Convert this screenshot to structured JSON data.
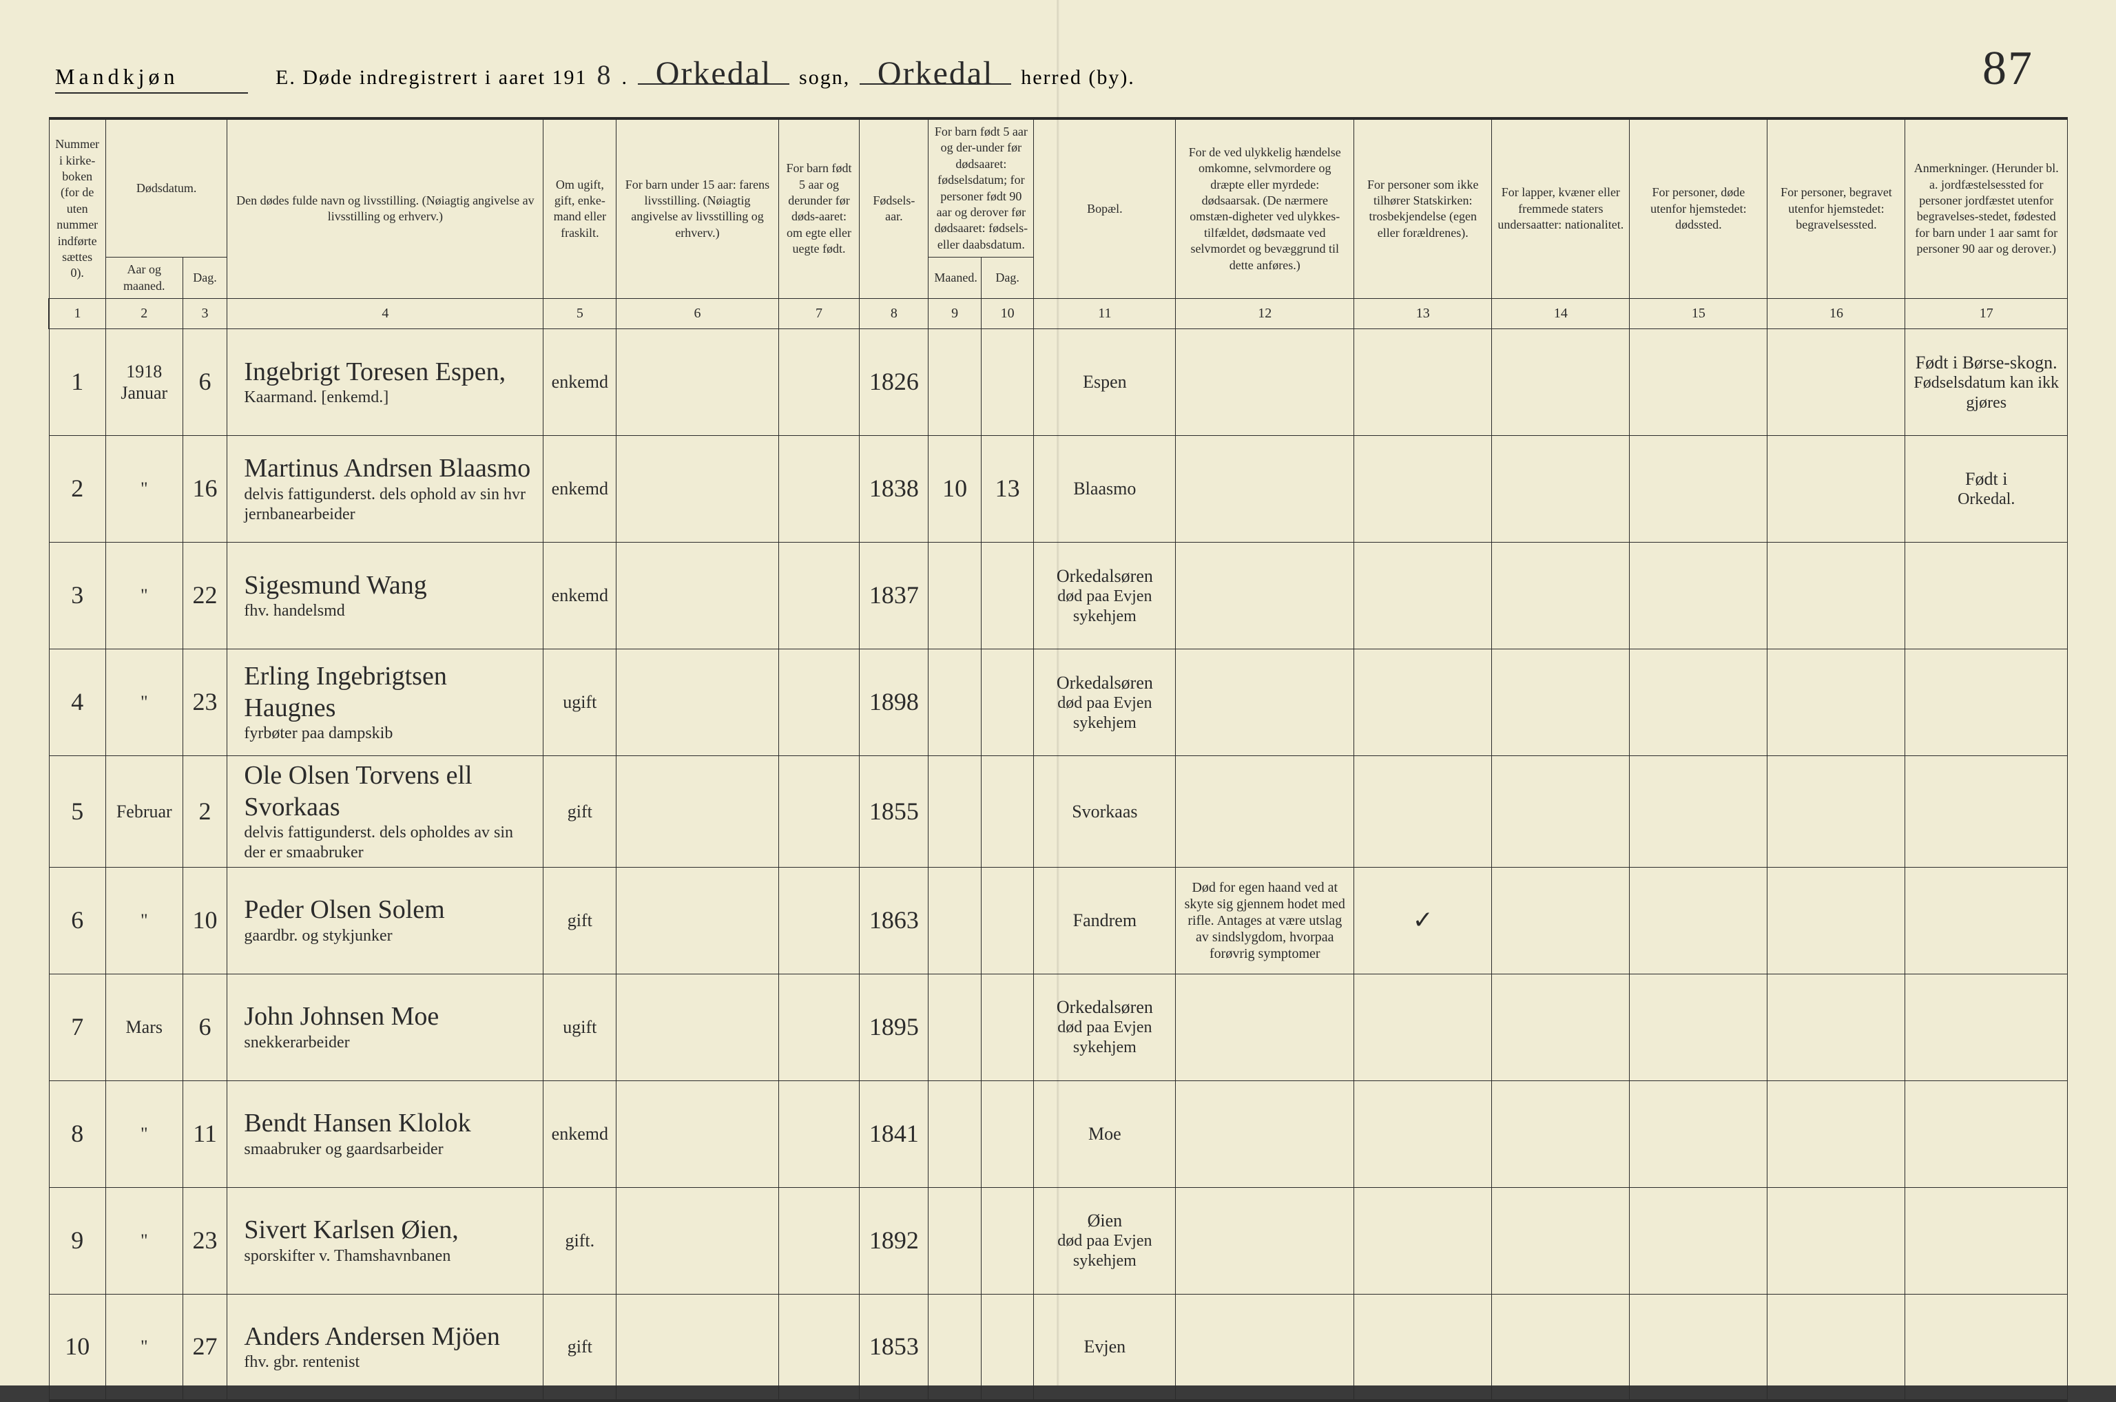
{
  "header": {
    "gender": "Mandkjøn",
    "title_prefix": "E.  Døde indregistrert i aaret 191",
    "year_suffix": "8",
    "sogn_handwritten": "Orkedal",
    "sogn_label": "sogn,",
    "herred_handwritten": "Orkedal",
    "herred_label": "herred (by).",
    "page_number": "87"
  },
  "columns": {
    "c1": "Nummer i kirke-boken (for de uten nummer indførte sættes 0).",
    "c2_group": "Dødsdatum.",
    "c2": "Aar og maaned.",
    "c3": "Dag.",
    "c4": "Den dødes fulde navn og livsstilling.\n(Nøiagtig angivelse av livsstilling og erhverv.)",
    "c5": "Om ugift, gift, enke-mand eller fraskilt.",
    "c6": "For barn under 15 aar:\nfarens livsstilling.\n(Nøiagtig angivelse av livsstilling og erhverv.)",
    "c7": "For barn født 5 aar og derunder før døds-aaret: om egte eller uegte født.",
    "c8": "Fødsels-aar.",
    "c9_10_group": "For barn født 5 aar og der-under før dødsaaret: fødselsdatum; for personer født 90 aar og derover før dødsaaret: fødsels- eller daabsdatum.",
    "c9": "Maaned.",
    "c10": "Dag.",
    "c11": "Bopæl.",
    "c12": "For de ved ulykkelig hændelse omkomne, selvmordere og dræpte eller myrdede: dødsaarsak.\n(De nærmere omstæn-digheter ved ulykkes-tilfældet, dødsmaate ved selvmordet og bevæggrund til dette anføres.)",
    "c13": "For personer som ikke tilhører Statskirken: trosbekjendelse (egen eller forældrenes).",
    "c14": "For lapper, kvæner eller fremmede staters undersaatter: nationalitet.",
    "c15": "For personer, døde utenfor hjemstedet: dødssted.",
    "c16": "For personer, begravet utenfor hjemstedet: begravelsessted.",
    "c17": "Anmerkninger.\n(Herunder bl. a. jordfæstelsessted for personer jordfæstet utenfor begravelses-stedet, fødested for barn under 1 aar samt for personer 90 aar og derover.)"
  },
  "colnums": [
    "1",
    "2",
    "3",
    "4",
    "5",
    "6",
    "7",
    "8",
    "9",
    "10",
    "11",
    "12",
    "13",
    "14",
    "15",
    "16",
    "17"
  ],
  "rows": [
    {
      "n": "1",
      "year": "1918",
      "month": "Januar",
      "day": "6",
      "name": "Ingebrigt Toresen Espen,",
      "sub": "Kaarmand. [enkemd.]",
      "status": "enkemd",
      "c6": "",
      "c7": "",
      "birth": "1826",
      "c9": "",
      "c10": "",
      "place": "Espen",
      "c12": "",
      "c13": "",
      "c14": "",
      "c15": "",
      "c16": "",
      "c17": "Født i Børse-skogn.",
      "c17b": "Fødselsdatum kan ikk gjøres"
    },
    {
      "n": "2",
      "year": "",
      "month": "\"",
      "day": "16",
      "name": "Martinus Andrsen Blaasmo",
      "sub": "delvis fattigunderst. dels ophold av sin   hvr jernbanearbeider",
      "status": "enkemd",
      "c6": "",
      "c7": "",
      "birth": "1838",
      "c9": "10",
      "c10": "13",
      "place": "Blaasmo",
      "c12": "",
      "c13": "",
      "c14": "",
      "c15": "",
      "c16": "",
      "c17": "Født i",
      "c17b": "Orkedal."
    },
    {
      "n": "3",
      "year": "",
      "month": "\"",
      "day": "22",
      "name": "Sigesmund Wang",
      "sub": "fhv. handelsmd",
      "status": "enkemd",
      "c6": "",
      "c7": "",
      "birth": "1837",
      "c9": "",
      "c10": "",
      "place": "Orkedalsøren",
      "place_sub": "død paa Evjen sykehjem",
      "c12": "",
      "c13": "",
      "c14": "",
      "c15": "",
      "c16": "",
      "c17": "",
      "c17b": ""
    },
    {
      "n": "4",
      "year": "",
      "month": "\"",
      "day": "23",
      "name": "Erling Ingebrigtsen Haugnes",
      "sub": "fyrbøter paa dampskib",
      "status": "ugift",
      "c6": "",
      "c7": "",
      "birth": "1898",
      "c9": "",
      "c10": "",
      "place": "Orkedalsøren",
      "place_sub": "død paa Evjen sykehjem",
      "c12": "",
      "c13": "",
      "c14": "",
      "c15": "",
      "c16": "",
      "c17": "",
      "c17b": ""
    },
    {
      "n": "5",
      "year": "",
      "month": "Februar",
      "day": "2",
      "name": "Ole Olsen Torvens ell Svorkaas",
      "sub": "delvis fattigunderst. dels opholdes av sin   der er smaabruker",
      "status": "gift",
      "c6": "",
      "c7": "",
      "birth": "1855",
      "c9": "",
      "c10": "",
      "place": "Svorkaas",
      "c12": "",
      "c13": "",
      "c14": "",
      "c15": "",
      "c16": "",
      "c17": "",
      "c17b": ""
    },
    {
      "n": "6",
      "year": "",
      "month": "\"",
      "day": "10",
      "name": "Peder Olsen Solem",
      "sub": "gaardbr. og stykjunker",
      "status": "gift",
      "c6": "",
      "c7": "",
      "birth": "1863",
      "c9": "",
      "c10": "",
      "place": "Fandrem",
      "c12": "Død for egen haand ved at skyte sig gjennem hodet med rifle. Antages at være utslag av sindslygdom, hvorpaa forøvrig symptomer",
      "c13": "✓",
      "c14": "",
      "c15": "",
      "c16": "",
      "c17": "",
      "c17b": ""
    },
    {
      "n": "7",
      "year": "",
      "month": "Mars",
      "day": "6",
      "name": "John Johnsen Moe",
      "sub": "snekkerarbeider",
      "status": "ugift",
      "c6": "",
      "c7": "",
      "birth": "1895",
      "c9": "",
      "c10": "",
      "place": "Orkedalsøren",
      "place_sub": "død paa Evjen sykehjem",
      "c12": "",
      "c13": "",
      "c14": "",
      "c15": "",
      "c16": "",
      "c17": "",
      "c17b": ""
    },
    {
      "n": "8",
      "year": "",
      "month": "\"",
      "day": "11",
      "name": "Bendt Hansen Klolok",
      "sub": "smaabruker og gaardsarbeider",
      "status": "enkemd",
      "c6": "",
      "c7": "",
      "birth": "1841",
      "c9": "",
      "c10": "",
      "place": "Moe",
      "c12": "",
      "c13": "",
      "c14": "",
      "c15": "",
      "c16": "",
      "c17": "",
      "c17b": ""
    },
    {
      "n": "9",
      "year": "",
      "month": "\"",
      "day": "23",
      "name": "Sivert Karlsen Øien,",
      "sub": "sporskifter v. Thamshavnbanen",
      "status": "gift.",
      "c6": "",
      "c7": "",
      "birth": "1892",
      "c9": "",
      "c10": "",
      "place": "Øien",
      "place_sub": "død paa Evjen sykehjem",
      "c12": "",
      "c13": "",
      "c14": "",
      "c15": "",
      "c16": "",
      "c17": "",
      "c17b": ""
    },
    {
      "n": "10",
      "year": "",
      "month": "\"",
      "day": "27",
      "name": "Anders Andersen Mjöen",
      "sub": "fhv. gbr.  rentenist",
      "status": "gift",
      "c6": "",
      "c7": "",
      "birth": "1853",
      "c9": "",
      "c10": "",
      "place": "Evjen",
      "c12": "",
      "c13": "",
      "c14": "",
      "c15": "",
      "c16": "",
      "c17": "",
      "c17b": ""
    }
  ]
}
